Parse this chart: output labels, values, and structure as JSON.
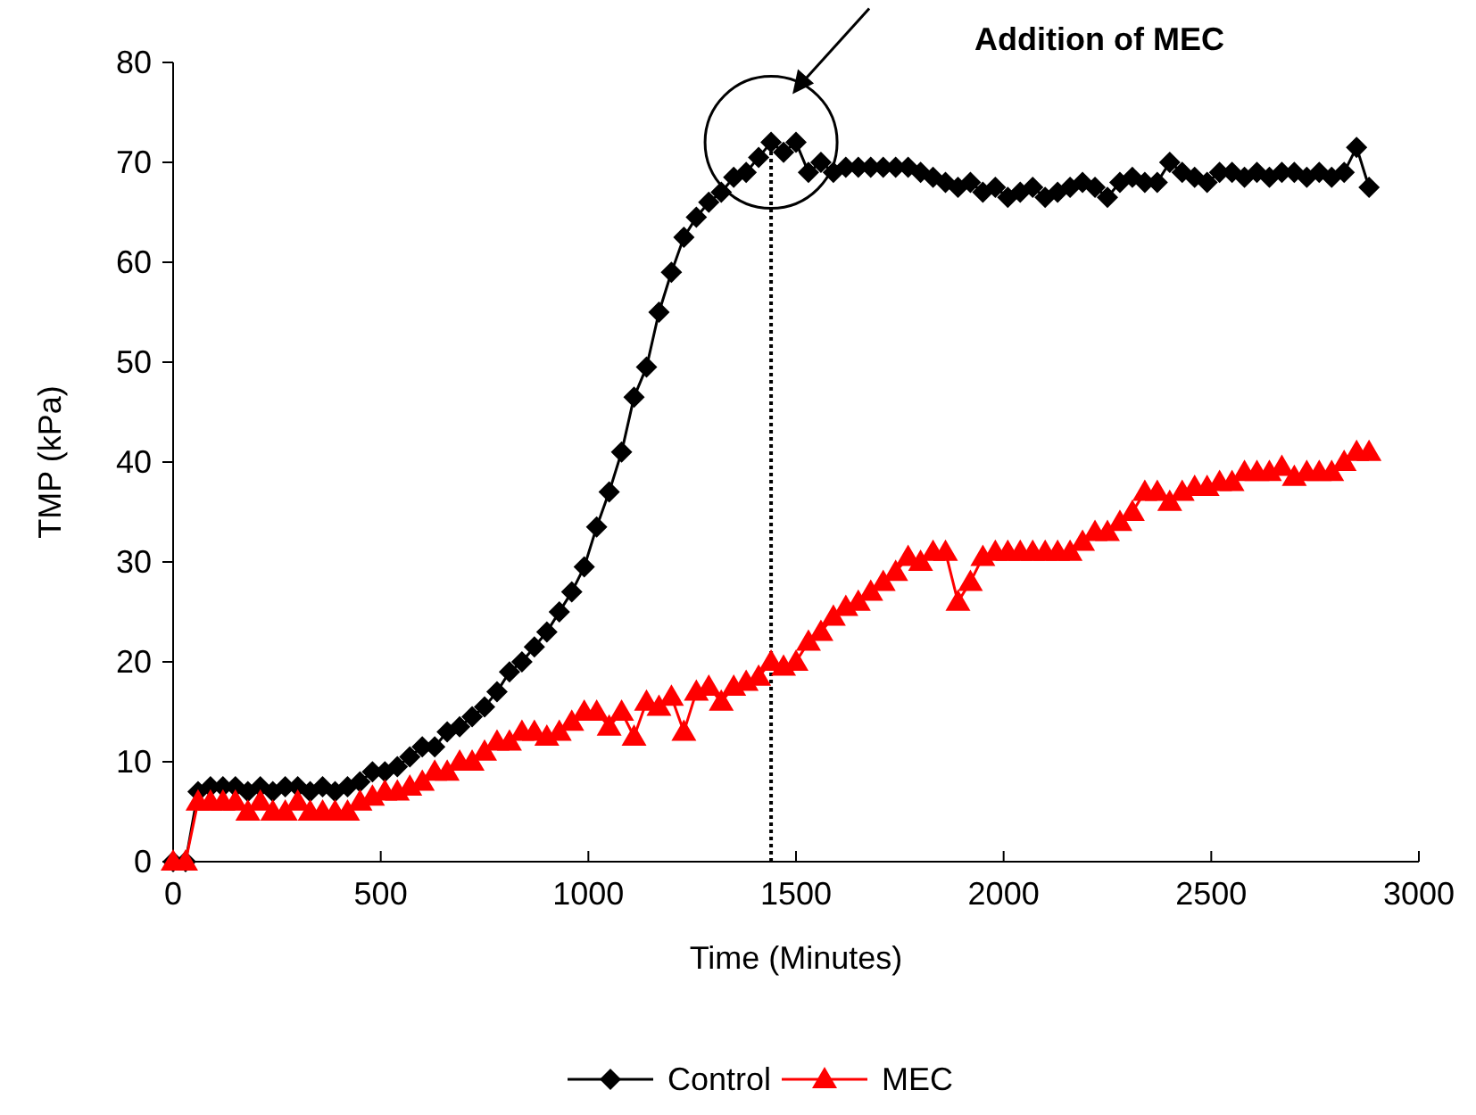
{
  "chart_data": {
    "type": "line",
    "xlabel": "Time (Minutes)",
    "ylabel": "TMP (kPa)",
    "xlim": [
      0,
      3000
    ],
    "xticks": [
      0,
      500,
      1000,
      1500,
      2000,
      2500,
      3000
    ],
    "ylim": [
      0,
      80
    ],
    "yticks": [
      0,
      10,
      20,
      30,
      40,
      50,
      60,
      70,
      80
    ],
    "grid": false,
    "legend": "bottom",
    "line_style": "solid",
    "x": [
      0,
      30,
      60,
      90,
      120,
      150,
      180,
      210,
      240,
      270,
      300,
      330,
      360,
      390,
      420,
      450,
      480,
      510,
      540,
      570,
      600,
      630,
      660,
      690,
      720,
      750,
      780,
      810,
      840,
      870,
      900,
      930,
      960,
      990,
      1020,
      1050,
      1080,
      1110,
      1140,
      1170,
      1200,
      1230,
      1260,
      1290,
      1320,
      1350,
      1380,
      1410,
      1440,
      1470,
      1500,
      1530,
      1560,
      1590,
      1620,
      1650,
      1680,
      1710,
      1740,
      1770,
      1800,
      1830,
      1860,
      1890,
      1920,
      1950,
      1980,
      2010,
      2040,
      2070,
      2100,
      2130,
      2160,
      2190,
      2220,
      2250,
      2280,
      2310,
      2340,
      2370,
      2400,
      2430,
      2460,
      2490,
      2520,
      2550,
      2580,
      2610,
      2640,
      2670,
      2700,
      2730,
      2760,
      2790,
      2820,
      2850,
      2880
    ],
    "series": [
      {
        "name": "Control",
        "color": "#000000",
        "marker": "diamond",
        "values": [
          0,
          0,
          7,
          7.5,
          7.5,
          7.5,
          7,
          7.5,
          7,
          7.5,
          7.5,
          7,
          7.5,
          7,
          7.5,
          8,
          9,
          9,
          9.5,
          10.5,
          11.5,
          11.5,
          13,
          13.5,
          14.5,
          15.5,
          17,
          19,
          20,
          21.5,
          23,
          25,
          27,
          29.5,
          33.5,
          37,
          41,
          46.5,
          49.5,
          55,
          59,
          62.5,
          64.5,
          66,
          67,
          68.5,
          69,
          70.5,
          72,
          71,
          72,
          69,
          70,
          69,
          69.5,
          69.5,
          69.5,
          69.5,
          69.5,
          69.5,
          69,
          68.5,
          68,
          67.5,
          68,
          67,
          67.5,
          66.5,
          67,
          67.5,
          66.5,
          67,
          67.5,
          68,
          67.5,
          66.5,
          68,
          68.5,
          68,
          68,
          70,
          69,
          68.5,
          68,
          69,
          69,
          68.5,
          69,
          68.5,
          69,
          69,
          68.5,
          69,
          68.5,
          69,
          71.5,
          67.5
        ]
      },
      {
        "name": "MEC",
        "color": "#ff0000",
        "marker": "triangle",
        "values": [
          0,
          0,
          6,
          6,
          6,
          6,
          5,
          6,
          5,
          5,
          6,
          5,
          5,
          5,
          5,
          6,
          6.5,
          7,
          7,
          7.5,
          8,
          9,
          9,
          10,
          10,
          11,
          12,
          12,
          13,
          13,
          12.5,
          13,
          14,
          15,
          15,
          13.5,
          15,
          12.5,
          16,
          15.5,
          16.5,
          13,
          17,
          17.5,
          16,
          17.5,
          18,
          18.5,
          20,
          19.5,
          20,
          22,
          23,
          24.5,
          25.5,
          26,
          27,
          28,
          29,
          30.5,
          30,
          31,
          31,
          26,
          28,
          30.5,
          31,
          31,
          31,
          31,
          31,
          31,
          31,
          32,
          33,
          33,
          34,
          35,
          37,
          37,
          36,
          37,
          37.5,
          37.5,
          38,
          38,
          39,
          39,
          39,
          39.5,
          38.5,
          39,
          39,
          39,
          40,
          41,
          41
        ]
      }
    ],
    "ref_lines": [
      {
        "axis": "x",
        "value": 1440,
        "line_style": "dotted",
        "color": "#000000"
      }
    ],
    "annotations": [
      "Addition of MEC"
    ]
  }
}
